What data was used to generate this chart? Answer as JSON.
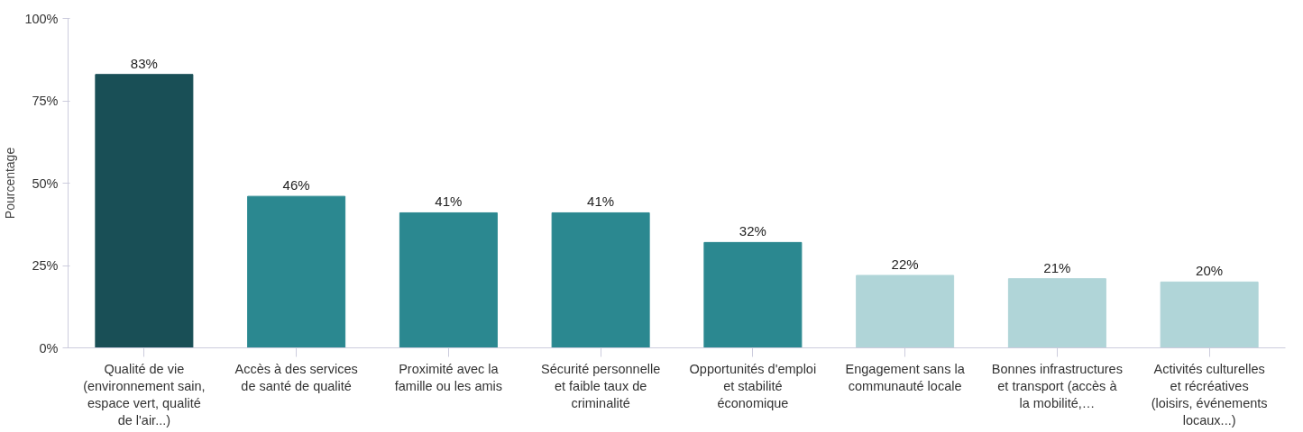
{
  "chart_data": {
    "type": "bar",
    "ylabel": "Pourcentage",
    "categories": [
      "Qualité de vie (environnement sain, espace vert, qualité de l'air...)",
      "Accès à des services de santé de qualité",
      "Proximité avec la famille ou les amis",
      "Sécurité personnelle et faible taux de criminalité",
      "Opportunités d'emploi et stabilité économique",
      "Engagement sans la communauté locale",
      "Bonnes infrastructures et transport (accès à la mobilité,…",
      "Activités culturelles et récréatives (loisirs, événements locaux...)"
    ],
    "values": [
      83,
      46,
      41,
      41,
      32,
      22,
      21,
      20
    ],
    "value_labels": [
      "83%",
      "46%",
      "41%",
      "41%",
      "32%",
      "22%",
      "21%",
      "20%"
    ],
    "colors": [
      "#194f56",
      "#2b8890",
      "#2b8890",
      "#2b8890",
      "#2b8890",
      "#b0d5d8",
      "#b0d5d8",
      "#b0d5d8"
    ],
    "ylim": [
      0,
      100
    ],
    "yticks": [
      {
        "value": 0,
        "label": "0%"
      },
      {
        "value": 25,
        "label": "25%"
      },
      {
        "value": 50,
        "label": "50%"
      },
      {
        "value": 75,
        "label": "75%"
      },
      {
        "value": 100,
        "label": "100%"
      }
    ],
    "grid": false
  }
}
